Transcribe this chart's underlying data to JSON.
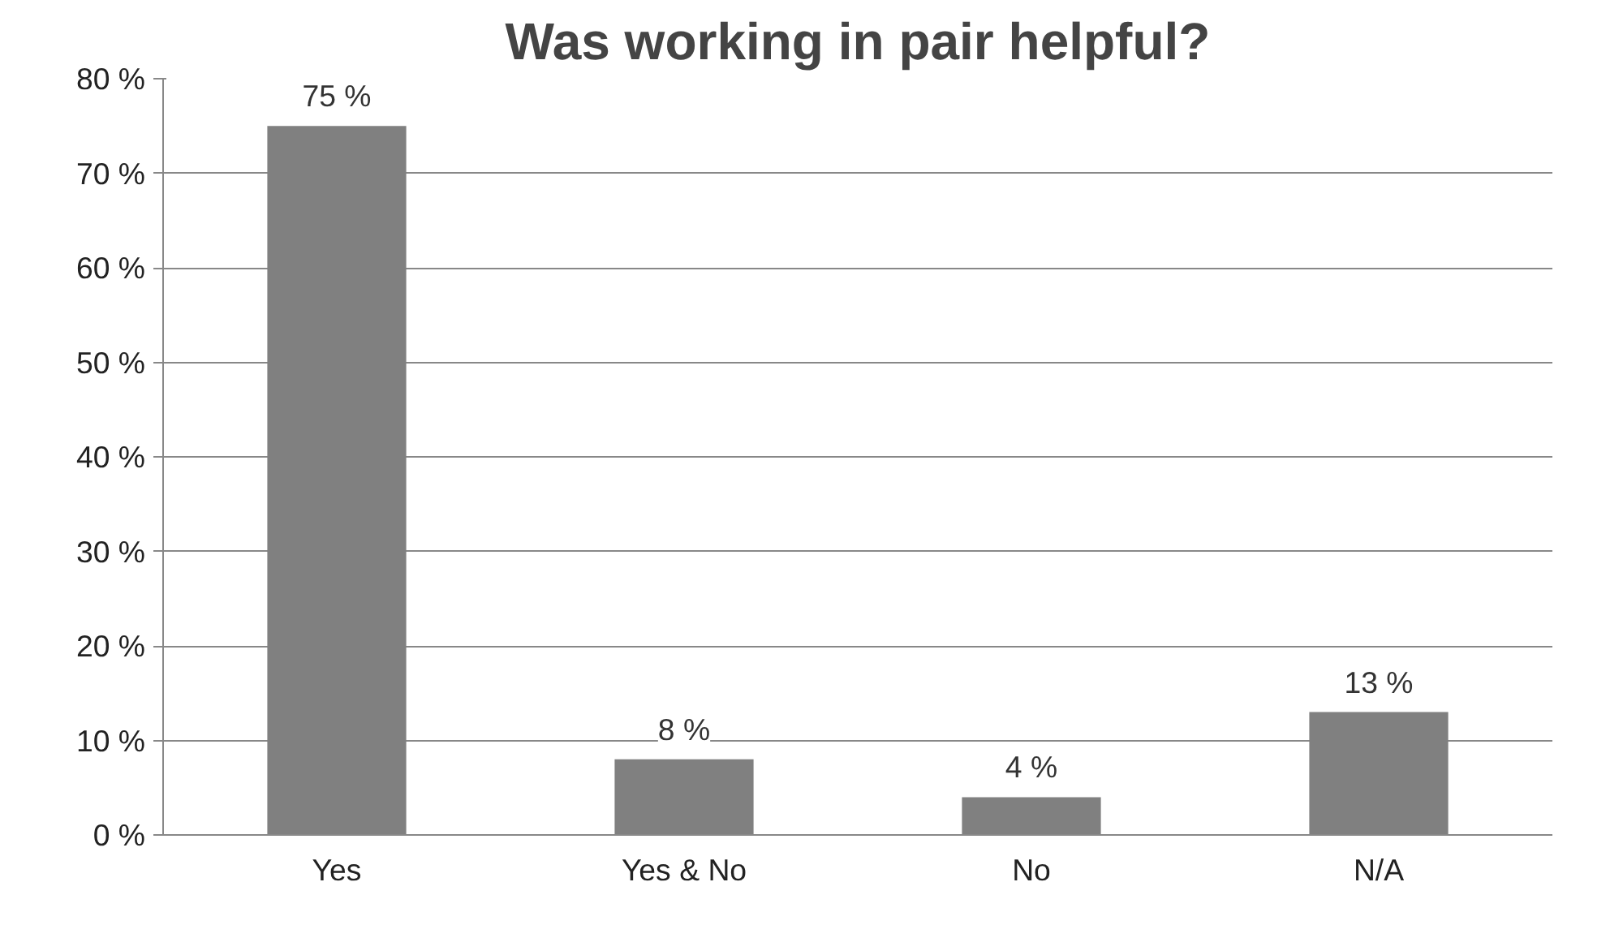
{
  "chart_data": {
    "type": "bar",
    "title": "Was working in pair helpful?",
    "categories": [
      "Yes",
      "Yes & No",
      "No",
      "N/A"
    ],
    "values": [
      75,
      8,
      4,
      13
    ],
    "value_labels": [
      "75 %",
      "8 %",
      "4 %",
      "13 %"
    ],
    "color": "#808080",
    "ylim": [
      0,
      80
    ],
    "yticks": [
      {
        "value": 0,
        "label": "0 %"
      },
      {
        "value": 10,
        "label": "10 %"
      },
      {
        "value": 20,
        "label": "20 %"
      },
      {
        "value": 30,
        "label": "30 %"
      },
      {
        "value": 40,
        "label": "40 %"
      },
      {
        "value": 50,
        "label": "50 %"
      },
      {
        "value": 60,
        "label": "60 %"
      },
      {
        "value": 70,
        "label": "70 %"
      },
      {
        "value": 80,
        "label": "80 %"
      }
    ],
    "grid": "y"
  }
}
